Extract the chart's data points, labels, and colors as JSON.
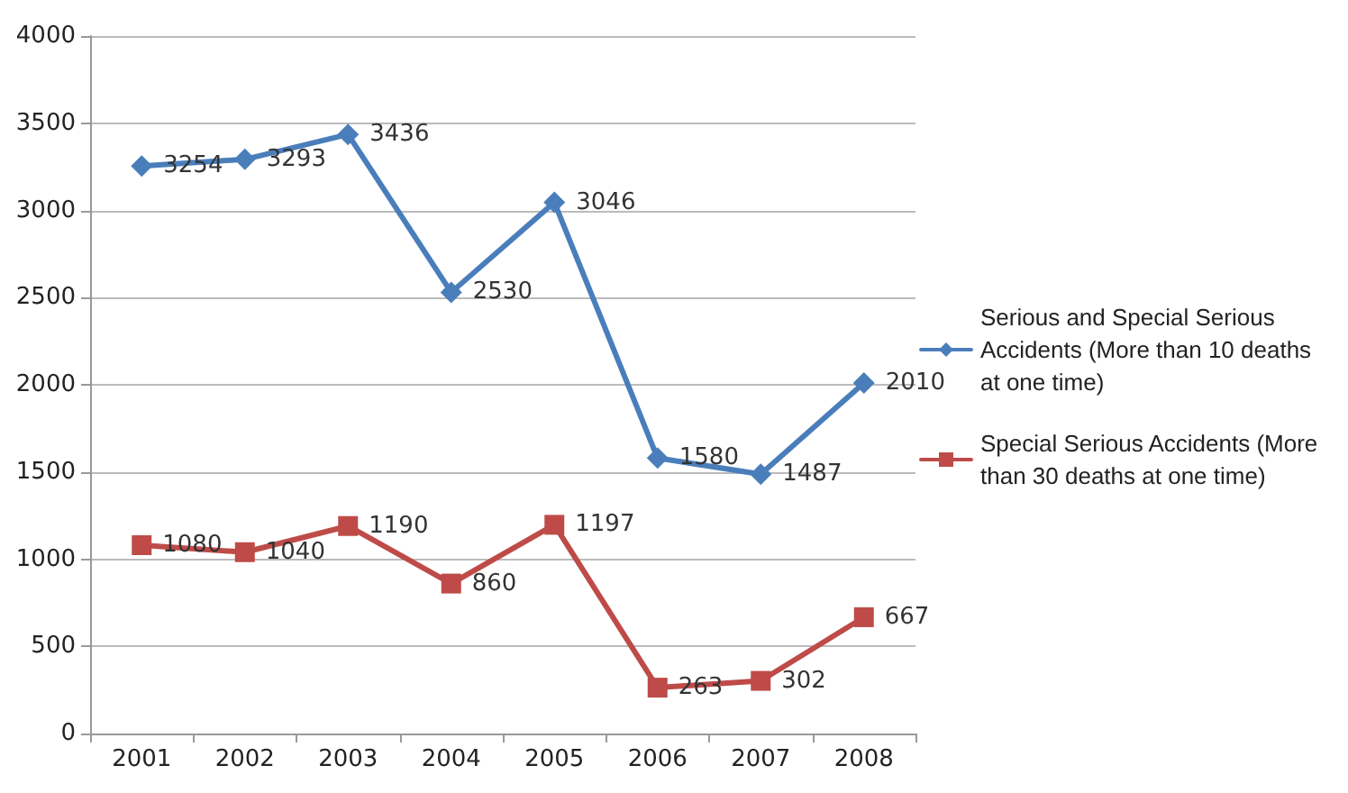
{
  "chart_data": {
    "type": "line",
    "categories": [
      "2001",
      "2002",
      "2003",
      "2004",
      "2005",
      "2006",
      "2007",
      "2008"
    ],
    "series": [
      {
        "name": "Serious and Special Serious Accidents (More than 10 deaths at one time)",
        "color": "#4a7ebb",
        "marker": "diamond",
        "values": [
          3254,
          3293,
          3436,
          2530,
          3046,
          1580,
          1487,
          2010
        ]
      },
      {
        "name": "Special Serious Accidents (More than 30 deaths at one time)",
        "color": "#be4b48",
        "marker": "square",
        "values": [
          1080,
          1040,
          1190,
          860,
          1197,
          263,
          302,
          667
        ]
      }
    ],
    "ylim": [
      0,
      4000
    ],
    "yticks": [
      0,
      500,
      1000,
      1500,
      2000,
      2500,
      3000,
      3500,
      4000
    ],
    "grid": "y",
    "legend": "right",
    "data_labels": true,
    "line_style": "solid"
  }
}
